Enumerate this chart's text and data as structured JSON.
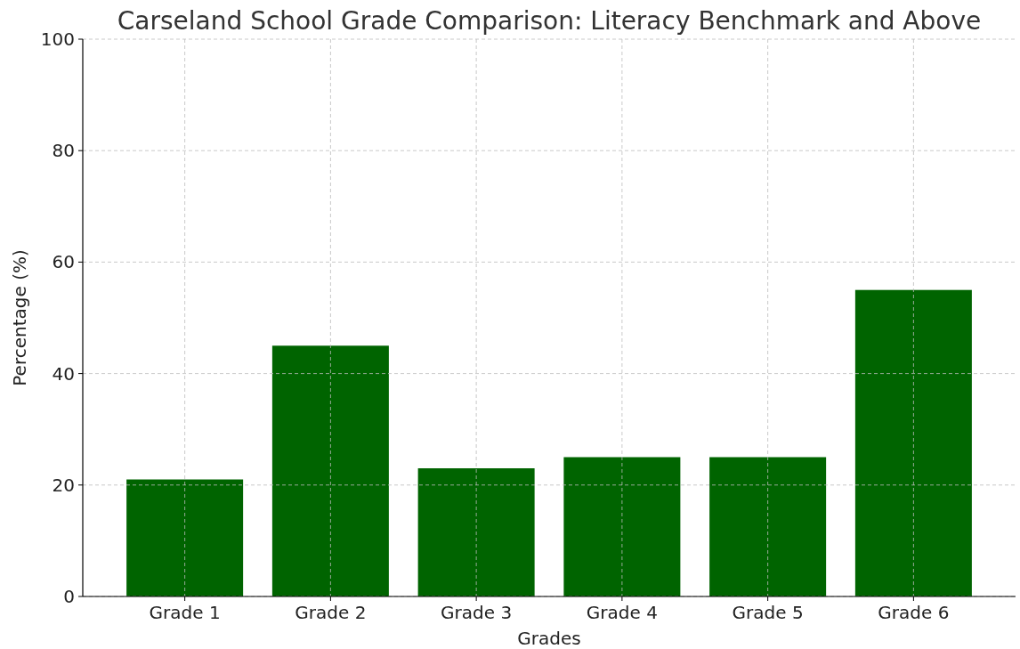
{
  "chart_data": {
    "type": "bar",
    "title": "Carseland School Grade Comparison: Literacy Benchmark and Above",
    "xlabel": "Grades",
    "ylabel": "Percentage (%)",
    "categories": [
      "Grade 1",
      "Grade 2",
      "Grade 3",
      "Grade 4",
      "Grade 5",
      "Grade 6"
    ],
    "values": [
      21,
      45,
      23,
      25,
      25,
      55
    ],
    "color": "#006400",
    "ylim": [
      0,
      100
    ],
    "yticks": [
      0,
      20,
      40,
      60,
      80,
      100
    ],
    "grid": true
  }
}
